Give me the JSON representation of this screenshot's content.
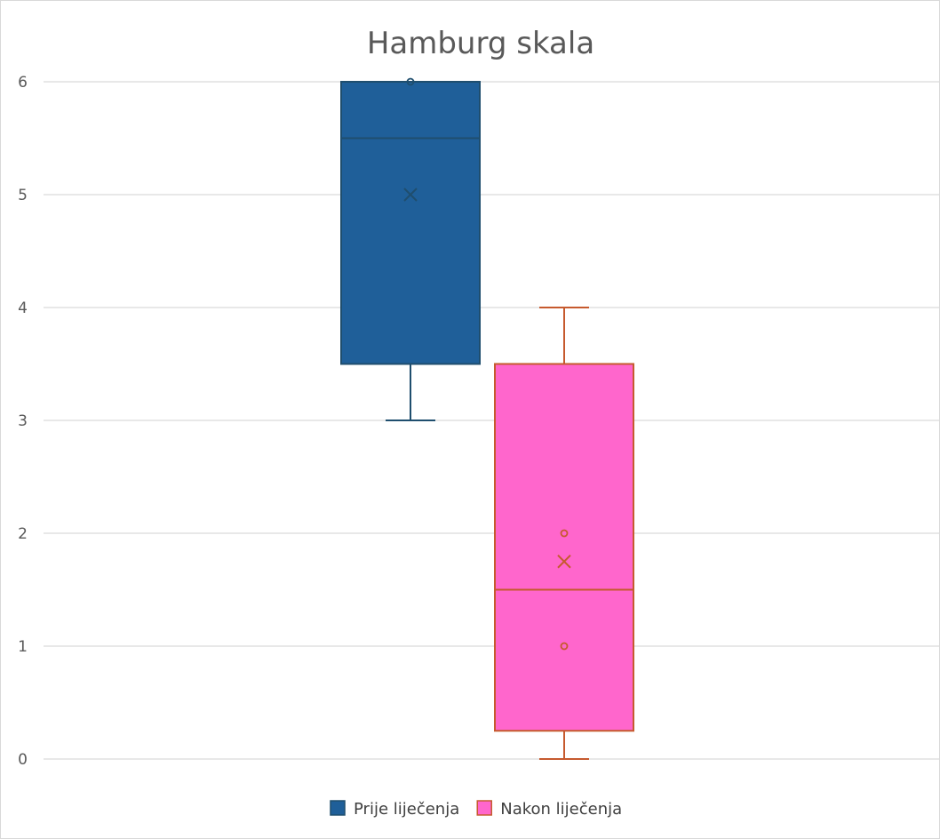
{
  "chart_data": {
    "type": "box",
    "title": "Hamburg skala",
    "xlabel": "",
    "ylabel": "",
    "ylim": [
      0,
      6
    ],
    "y_ticks": [
      "0",
      "1",
      "2",
      "3",
      "4",
      "5",
      "6"
    ],
    "grid": true,
    "legend_position": "bottom",
    "series": [
      {
        "name": "Prije liječenja",
        "color": "#1f5f99",
        "stroke": "#1f4e6e",
        "whisker_min": 3,
        "q1": 3.5,
        "median": 5.5,
        "q3": 6,
        "whisker_max": 6,
        "mean": 5,
        "points": [
          6
        ]
      },
      {
        "name": "Nakon liječenja",
        "color": "#ff66cc",
        "stroke": "#c65a2e",
        "whisker_min": 0,
        "q1": 0.25,
        "median": 1.5,
        "q3": 3.5,
        "whisker_max": 4,
        "mean": 1.75,
        "points": [
          1,
          2
        ]
      }
    ]
  }
}
